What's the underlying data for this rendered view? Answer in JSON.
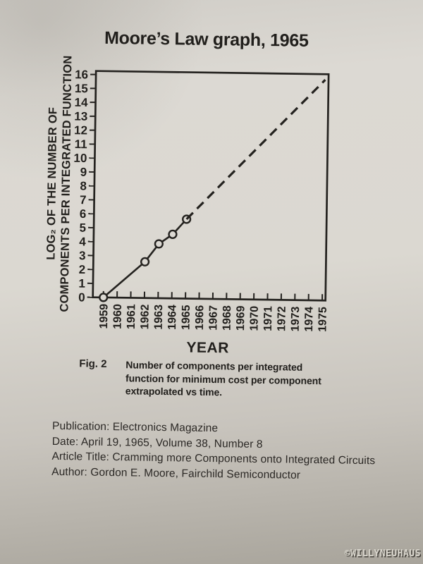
{
  "page": {
    "title": "Moore’s Law graph, 1965",
    "watermark": "©WILLYNEUHAUS"
  },
  "chart_data": {
    "type": "line",
    "title": "Moore’s Law graph, 1965",
    "xlabel": "YEAR",
    "ylabel_lines": [
      "LOG₂ OF THE NUMBER OF",
      "COMPONENTS PER INTEGRATED FUNCTION"
    ],
    "xlim": [
      1959,
      1975
    ],
    "ylim": [
      0,
      16
    ],
    "grid": false,
    "legend": false,
    "x_ticks": [
      1959,
      1960,
      1961,
      1962,
      1963,
      1964,
      1965,
      1966,
      1967,
      1968,
      1969,
      1970,
      1971,
      1972,
      1973,
      1974,
      1975
    ],
    "y_ticks": [
      0,
      1,
      2,
      3,
      4,
      5,
      6,
      7,
      8,
      9,
      10,
      11,
      12,
      13,
      14,
      15,
      16
    ],
    "series": [
      {
        "name": "observed-data",
        "style": "solid",
        "marker": "open-circle",
        "x": [
          1959,
          1962,
          1963,
          1964,
          1965
        ],
        "y": [
          0,
          2.6,
          3.9,
          4.6,
          5.7
        ]
      },
      {
        "name": "extrapolation",
        "style": "dashed",
        "marker": "none",
        "x": [
          1965,
          1975
        ],
        "y": [
          5.7,
          15.85
        ]
      }
    ]
  },
  "caption": {
    "fig_label": "Fig. 2",
    "lines": [
      "Number of components per integrated",
      "function for minimum cost per component",
      "extrapolated vs time."
    ]
  },
  "publication": {
    "lines": [
      "Publication: Electronics Magazine",
      "Date: April 19, 1965, Volume 38, Number 8",
      "Article Title: Cramming more Components onto Integrated Circuits",
      "Author: Gordon E. Moore, Fairchild Semiconductor"
    ]
  },
  "colors": {
    "ink": "#24221f",
    "paper": "#dcd9d3",
    "paper_dark": "#a8a49b"
  }
}
